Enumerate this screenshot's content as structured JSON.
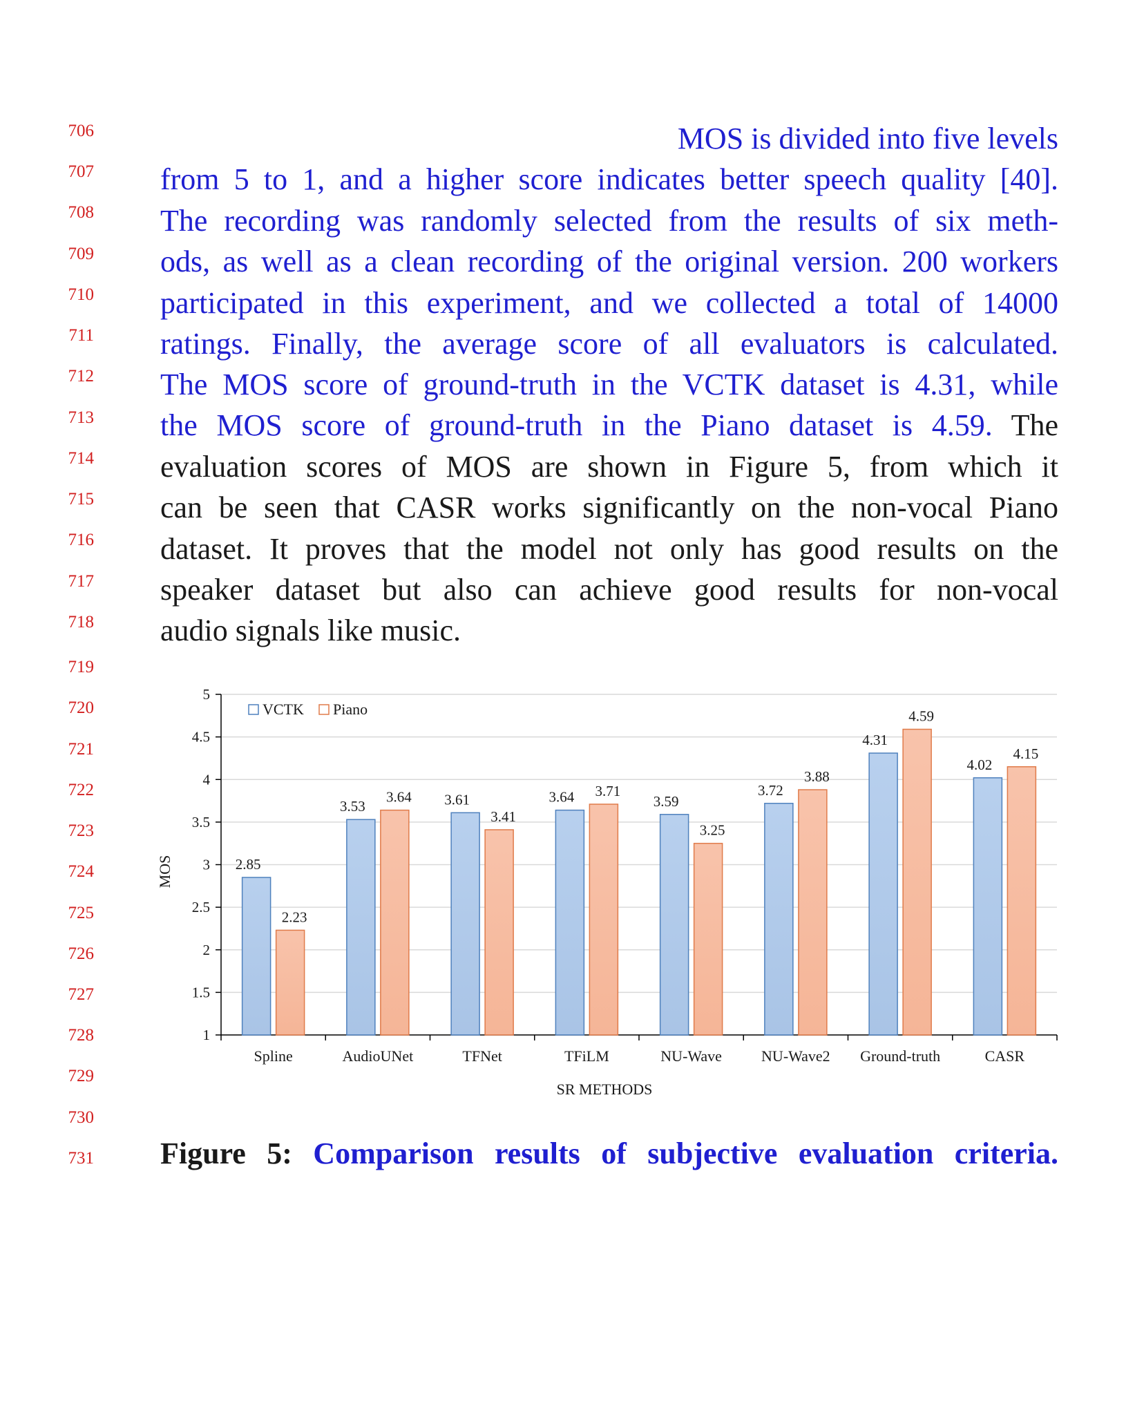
{
  "line_numbers": [
    "706",
    "707",
    "708",
    "709",
    "710",
    "711",
    "712",
    "713",
    "714",
    "715",
    "716",
    "717",
    "718",
    "719",
    "720",
    "721",
    "722",
    "723",
    "724",
    "725",
    "726",
    "727",
    "728",
    "729",
    "730",
    "731"
  ],
  "paragraph": {
    "line_1": "MOS is divided into five levels",
    "line_2": "from 5 to 1, and a higher score indicates better speech quality [40].",
    "line_3": "The recording was randomly selected from the results of six meth-",
    "line_4": "ods, as well as a clean recording of the original version. 200 workers",
    "line_5": "participated in this experiment, and we collected a total of 14000",
    "line_6": "ratings. Finally, the average score of all evaluators is calculated.",
    "line_7": "The MOS score of ground-truth in the VCTK dataset is 4.31, while",
    "line_8_blue": "the MOS score of ground-truth in the Piano dataset is 4.59.",
    "line_8_black": " The",
    "line_9": "evaluation scores of MOS are shown in Figure 5, from which it",
    "line_10": "can be seen that CASR works significantly on the non-vocal Piano",
    "line_11": "dataset. It proves that the model not only has good results on the",
    "line_12": "speaker dataset but also can achieve good results for non-vocal",
    "line_13": "audio signals like music."
  },
  "colors": {
    "blue_text": "#1f1fd0",
    "line_number_red": "#d21f1f",
    "vctk_fill": "#a9c4e6",
    "vctk_stroke": "#4f81bd",
    "piano_fill": "#f5b597",
    "piano_stroke": "#e07b4a"
  },
  "chart_data": {
    "type": "bar",
    "categories": [
      "Spline",
      "AudioUNet",
      "TFNet",
      "TFiLM",
      "NU-Wave",
      "NU-Wave2",
      "Ground-truth",
      "CASR"
    ],
    "series": [
      {
        "name": "VCTK",
        "values": [
          2.85,
          3.53,
          3.61,
          3.64,
          3.59,
          3.72,
          4.31,
          4.02
        ]
      },
      {
        "name": "Piano",
        "values": [
          2.23,
          3.64,
          3.41,
          3.71,
          3.25,
          3.88,
          4.59,
          4.15
        ]
      }
    ],
    "value_labels": {
      "VCTK": [
        "2.85",
        "3.53",
        "3.61",
        "3.64",
        "3.59",
        "3.72",
        "4.31",
        "4.02"
      ],
      "Piano": [
        "2.23",
        "3.64",
        "3.41",
        "3.71",
        "3.25",
        "3.88",
        "4.59",
        "4.15"
      ]
    },
    "xlabel": "SR METHODS",
    "ylabel": "MOS",
    "ylim": [
      1,
      5
    ],
    "yticks": [
      1,
      1.5,
      2,
      2.5,
      3,
      3.5,
      4,
      4.5,
      5
    ],
    "ytick_labels": [
      "1",
      "1.5",
      "2",
      "2.5",
      "3",
      "3.5",
      "4",
      "4.5",
      "5"
    ],
    "grid": true,
    "legend": "top-left"
  },
  "caption": {
    "label": "Figure 5:",
    "text": "Comparison results of subjective evaluation criteria."
  }
}
